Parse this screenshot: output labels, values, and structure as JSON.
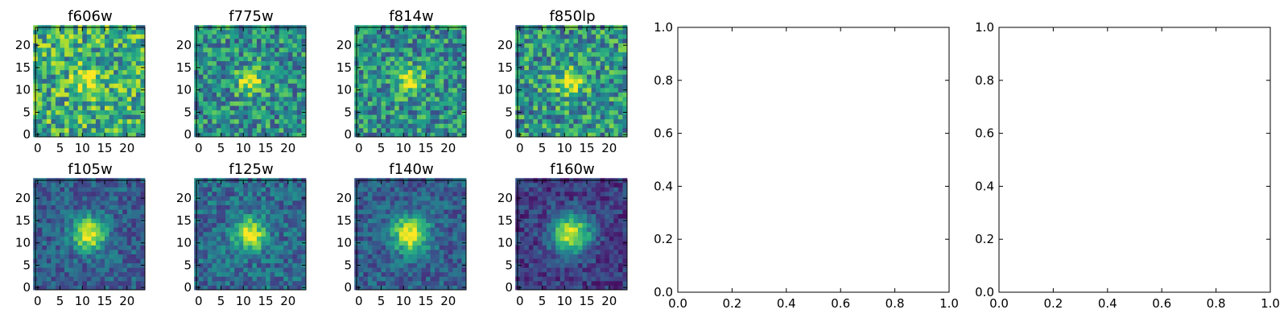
{
  "chart_data": [
    {
      "type": "heatmap",
      "title": "f606w",
      "grid_size": 25,
      "xticks": [
        "0",
        "5",
        "10",
        "15",
        "20"
      ],
      "yticks": [
        "0",
        "5",
        "10",
        "15",
        "20"
      ],
      "colormap": "viridis",
      "peak": [
        12,
        12
      ],
      "peak_width": 2.2,
      "peak_strength": 0.35,
      "background": 0.62,
      "noise": 0.32,
      "seed": 11
    },
    {
      "type": "heatmap",
      "title": "f775w",
      "grid_size": 25,
      "xticks": [
        "0",
        "5",
        "10",
        "15",
        "20"
      ],
      "yticks": [
        "0",
        "5",
        "10",
        "15",
        "20"
      ],
      "colormap": "viridis",
      "peak": [
        12,
        12
      ],
      "peak_width": 2.0,
      "peak_strength": 0.5,
      "background": 0.5,
      "noise": 0.28,
      "seed": 23
    },
    {
      "type": "heatmap",
      "title": "f814w",
      "grid_size": 25,
      "xticks": [
        "0",
        "5",
        "10",
        "15",
        "20"
      ],
      "yticks": [
        "0",
        "5",
        "10",
        "15",
        "20"
      ],
      "colormap": "viridis",
      "peak": [
        12,
        12
      ],
      "peak_width": 2.0,
      "peak_strength": 0.5,
      "background": 0.5,
      "noise": 0.28,
      "seed": 37
    },
    {
      "type": "heatmap",
      "title": "f850lp",
      "grid_size": 25,
      "xticks": [
        "0",
        "5",
        "10",
        "15",
        "20"
      ],
      "yticks": [
        "0",
        "5",
        "10",
        "15",
        "20"
      ],
      "colormap": "viridis",
      "peak": [
        12,
        12
      ],
      "peak_width": 2.2,
      "peak_strength": 0.45,
      "background": 0.52,
      "noise": 0.3,
      "seed": 41
    },
    {
      "type": "heatmap",
      "title": "f105w",
      "grid_size": 25,
      "xticks": [
        "0",
        "5",
        "10",
        "15",
        "20"
      ],
      "yticks": [
        "0",
        "5",
        "10",
        "15",
        "20"
      ],
      "colormap": "viridis",
      "peak": [
        12,
        12
      ],
      "peak_width": 2.6,
      "peak_strength": 0.7,
      "background": 0.3,
      "noise": 0.16,
      "seed": 53
    },
    {
      "type": "heatmap",
      "title": "f125w",
      "grid_size": 25,
      "xticks": [
        "0",
        "5",
        "10",
        "15",
        "20"
      ],
      "yticks": [
        "0",
        "5",
        "10",
        "15",
        "20"
      ],
      "colormap": "viridis",
      "peak": [
        12,
        12
      ],
      "peak_width": 2.5,
      "peak_strength": 0.65,
      "background": 0.35,
      "noise": 0.18,
      "seed": 67
    },
    {
      "type": "heatmap",
      "title": "f140w",
      "grid_size": 25,
      "xticks": [
        "0",
        "5",
        "10",
        "15",
        "20"
      ],
      "yticks": [
        "0",
        "5",
        "10",
        "15",
        "20"
      ],
      "colormap": "viridis",
      "peak": [
        12,
        12
      ],
      "peak_width": 2.8,
      "peak_strength": 0.72,
      "background": 0.3,
      "noise": 0.16,
      "seed": 71
    },
    {
      "type": "heatmap",
      "title": "f160w",
      "grid_size": 25,
      "xticks": [
        "0",
        "5",
        "10",
        "15",
        "20"
      ],
      "yticks": [
        "0",
        "5",
        "10",
        "15",
        "20"
      ],
      "colormap": "viridis",
      "peak": [
        12,
        12
      ],
      "peak_width": 3.0,
      "peak_strength": 0.8,
      "background": 0.18,
      "noise": 0.14,
      "seed": 83
    },
    {
      "type": "empty",
      "title": "",
      "xlim": [
        0,
        1
      ],
      "ylim": [
        0,
        1
      ],
      "xticks": [
        "0.0",
        "0.2",
        "0.4",
        "0.6",
        "0.8",
        "1.0"
      ],
      "yticks": [
        "0.0",
        "0.2",
        "0.4",
        "0.6",
        "0.8",
        "1.0"
      ]
    },
    {
      "type": "empty",
      "title": "",
      "xlim": [
        0,
        1
      ],
      "ylim": [
        0,
        1
      ],
      "xticks": [
        "0.0",
        "0.2",
        "0.4",
        "0.6",
        "0.8",
        "1.0"
      ],
      "yticks": [
        "0.0",
        "0.2",
        "0.4",
        "0.6",
        "0.8",
        "1.0"
      ]
    }
  ]
}
